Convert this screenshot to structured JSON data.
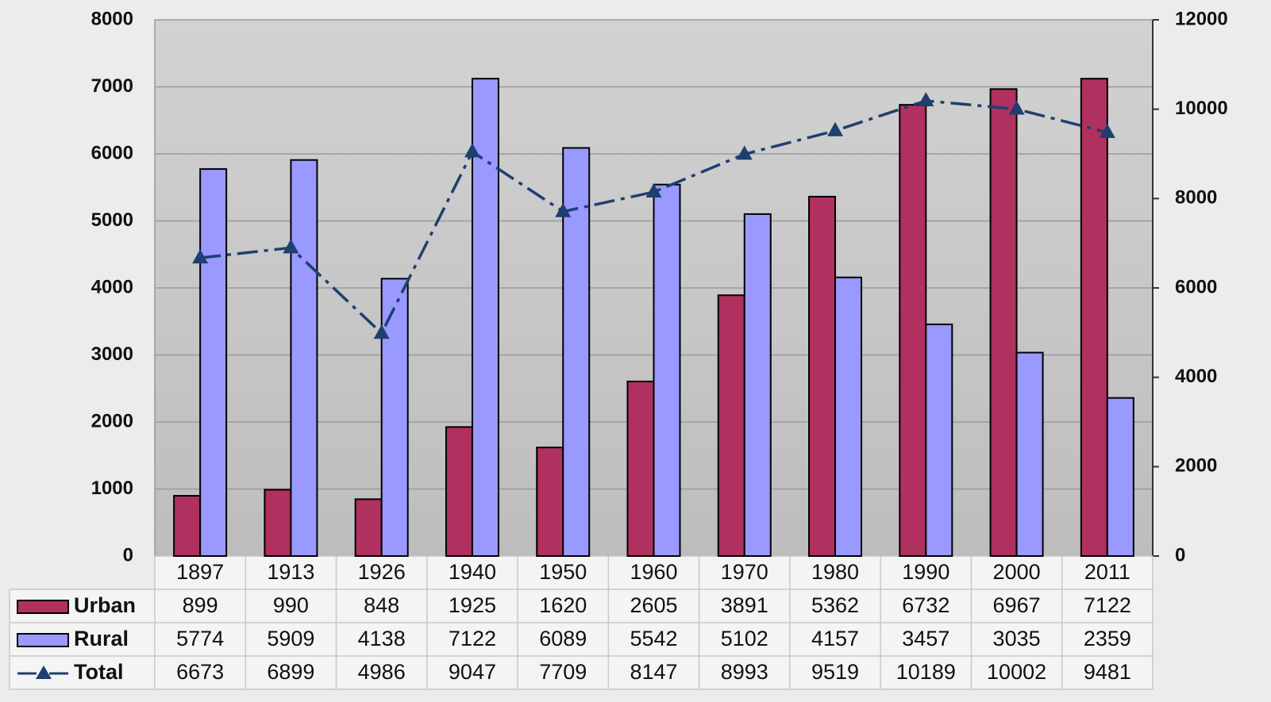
{
  "chart_data": {
    "type": "bar",
    "categories": [
      "1897",
      "1913",
      "1926",
      "1940",
      "1950",
      "1960",
      "1970",
      "1980",
      "1990",
      "2000",
      "2011"
    ],
    "series": [
      {
        "name": "Urban",
        "color": "#b0305f",
        "values": [
          899,
          990,
          848,
          1925,
          1620,
          2605,
          3891,
          5362,
          6732,
          6967,
          7122
        ]
      },
      {
        "name": "Rural",
        "color": "#9999ff",
        "values": [
          5774,
          5909,
          4138,
          7122,
          6089,
          5542,
          5102,
          4157,
          3457,
          3035,
          2359
        ]
      },
      {
        "name": "Total",
        "color": "#1f3f70",
        "type": "line",
        "axis": "y2",
        "values": [
          6673,
          6899,
          4986,
          9047,
          7709,
          8147,
          8993,
          9519,
          10189,
          10002,
          9481
        ]
      }
    ],
    "ylim": [
      0,
      8000
    ],
    "yticks": [
      0,
      1000,
      2000,
      3000,
      4000,
      5000,
      6000,
      7000,
      8000
    ],
    "y2lim": [
      0,
      12000
    ],
    "y2ticks": [
      0,
      2000,
      4000,
      6000,
      8000,
      10000,
      12000
    ],
    "grid": true
  }
}
